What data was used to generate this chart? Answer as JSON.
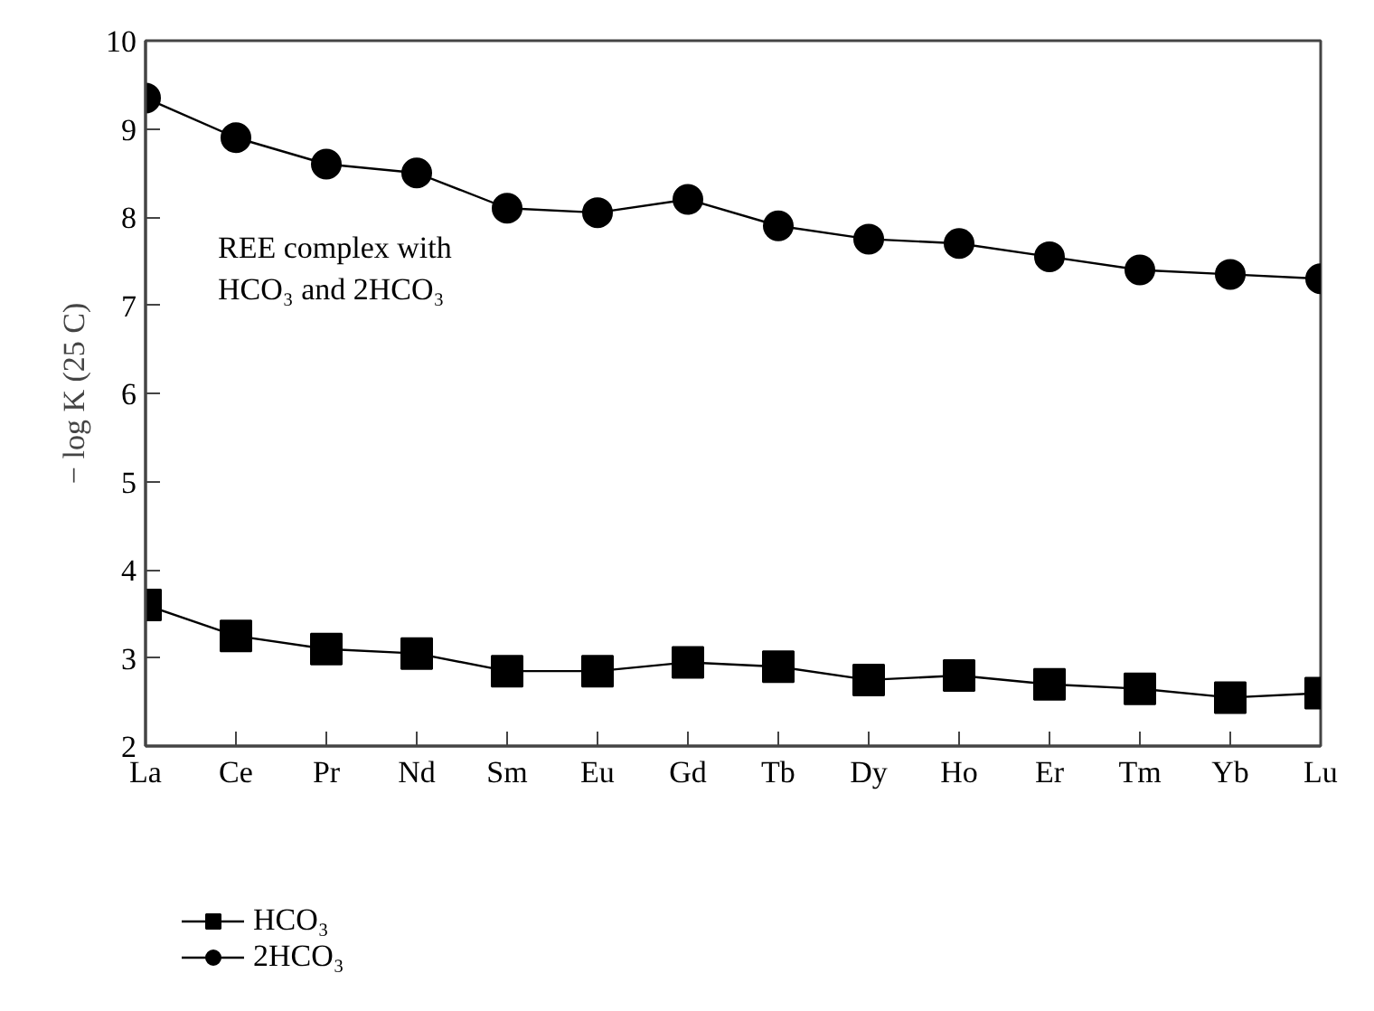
{
  "chart_data": {
    "type": "line",
    "categories": [
      "La",
      "Ce",
      "Pr",
      "Nd",
      "Sm",
      "Eu",
      "Gd",
      "Tb",
      "Dy",
      "Ho",
      "Er",
      "Tm",
      "Yb",
      "Lu"
    ],
    "ylabel": "− log K (25 C)",
    "ylim": [
      2,
      10
    ],
    "yticks": [
      2,
      3,
      4,
      5,
      6,
      7,
      8,
      9,
      10
    ],
    "grid": false,
    "legend": "bottom left",
    "annotations": [
      "REE complex with\nHCO₃ and 2HCO₃"
    ],
    "series": [
      {
        "name": "HCO₃",
        "color": "#000000",
        "marker": "square",
        "values": [
          3.6,
          3.25,
          3.1,
          3.05,
          2.85,
          2.85,
          2.95,
          2.9,
          2.75,
          2.8,
          2.7,
          2.65,
          2.55,
          2.6
        ]
      },
      {
        "name": "2HCO₃",
        "color": "#000000",
        "marker": "circle",
        "values": [
          9.35,
          8.9,
          8.6,
          8.5,
          8.1,
          8.05,
          8.2,
          7.9,
          7.75,
          7.7,
          7.55,
          7.4,
          7.35,
          7.3
        ]
      }
    ]
  }
}
